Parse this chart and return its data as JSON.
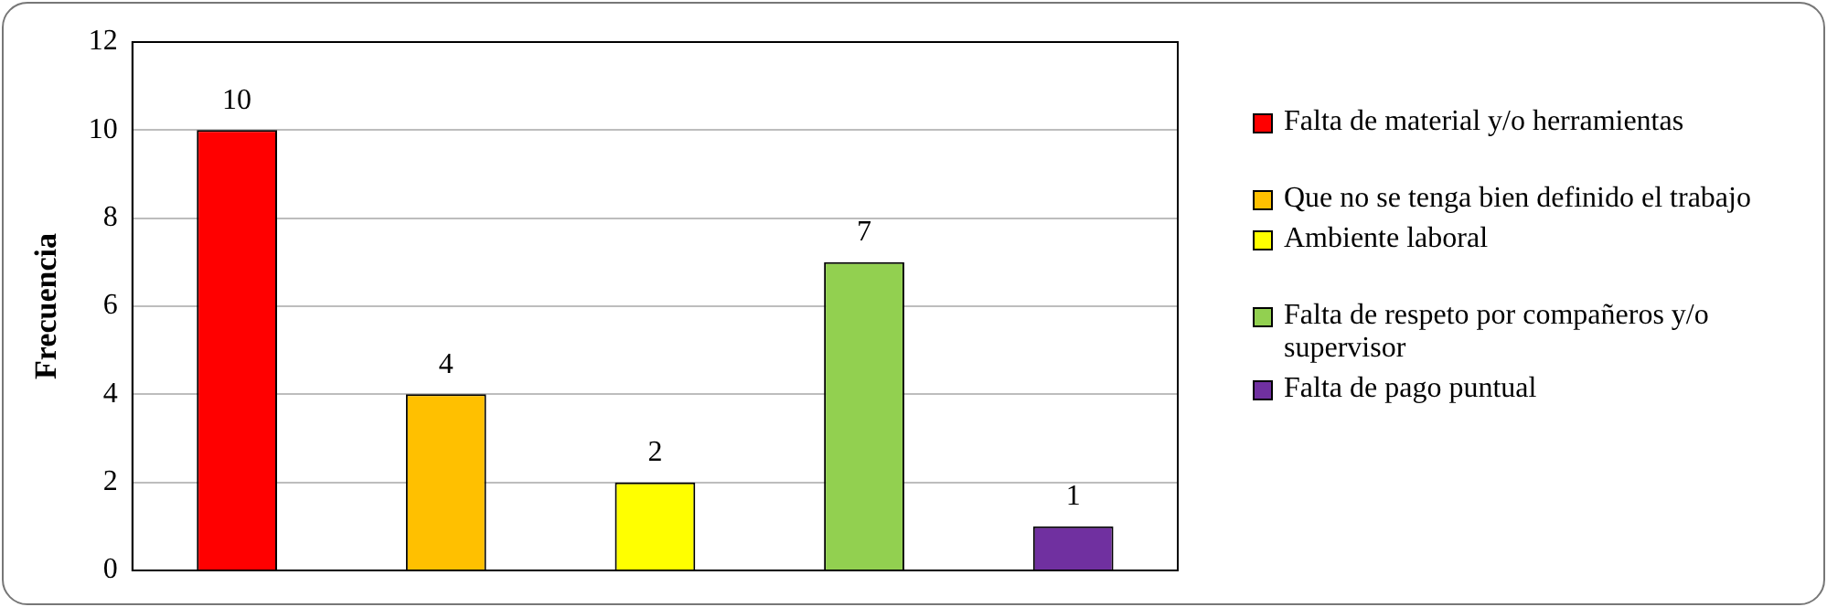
{
  "chart_data": {
    "type": "bar",
    "ylabel": "Frecuencia",
    "categories": [
      null,
      null,
      null,
      null,
      null
    ],
    "series": [
      {
        "name": "Falta de material y/o herramientas",
        "color": "#ff0000",
        "values": [
          10,
          null,
          null,
          null,
          null
        ]
      },
      {
        "name": "Que no se tenga bien definido el trabajo",
        "color": "#ffc000",
        "values": [
          null,
          4,
          null,
          null,
          null
        ]
      },
      {
        "name": "Ambiente laboral",
        "color": "#ffff00",
        "values": [
          null,
          null,
          2,
          null,
          null
        ]
      },
      {
        "name": "Falta de respeto por compañeros y/o supervisor",
        "color": "#92d050",
        "values": [
          null,
          null,
          null,
          7,
          null
        ]
      },
      {
        "name": "Falta de pago puntual",
        "color": "#7030a0",
        "values": [
          null,
          null,
          null,
          null,
          1
        ]
      }
    ],
    "ylim": [
      0,
      12
    ],
    "yticks": [
      0,
      2,
      4,
      6,
      8,
      10,
      12
    ],
    "grid": "y",
    "legend": "right",
    "data_labels": true,
    "tick_labels": "y"
  }
}
